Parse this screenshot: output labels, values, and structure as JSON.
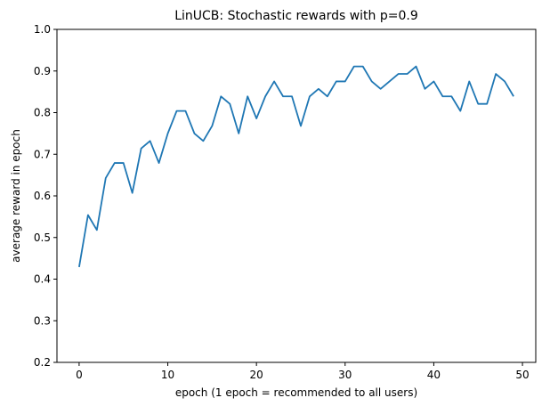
{
  "chart_data": {
    "type": "line",
    "title": "LinUCB: Stochastic rewards with p=0.9",
    "xlabel": "epoch (1 epoch = recommended to all users)",
    "ylabel": "average reward in epoch",
    "xlim": [
      -2.5,
      51.5
    ],
    "ylim": [
      0.2,
      1.0
    ],
    "xticks": [
      0,
      10,
      20,
      30,
      40,
      50
    ],
    "xtick_labels": [
      "0",
      "10",
      "20",
      "30",
      "40",
      "50"
    ],
    "yticks": [
      0.2,
      0.3,
      0.4,
      0.5,
      0.6,
      0.7,
      0.8,
      0.9,
      1.0
    ],
    "ytick_labels": [
      "0.2",
      "0.3",
      "0.4",
      "0.5",
      "0.6",
      "0.7",
      "0.8",
      "0.9",
      "1.0"
    ],
    "grid": false,
    "series": [
      {
        "color": "#1f77b4",
        "x": [
          0,
          1,
          2,
          3,
          4,
          5,
          6,
          7,
          8,
          9,
          10,
          11,
          12,
          13,
          14,
          15,
          16,
          17,
          18,
          19,
          20,
          21,
          22,
          23,
          24,
          25,
          26,
          27,
          28,
          29,
          30,
          31,
          32,
          33,
          34,
          35,
          36,
          37,
          38,
          39,
          40,
          41,
          42,
          43,
          44,
          45,
          46,
          47,
          48,
          49
        ],
        "y": [
          0.429,
          0.554,
          0.518,
          0.643,
          0.679,
          0.679,
          0.607,
          0.714,
          0.732,
          0.679,
          0.75,
          0.804,
          0.804,
          0.75,
          0.732,
          0.768,
          0.839,
          0.821,
          0.75,
          0.839,
          0.786,
          0.839,
          0.875,
          0.839,
          0.839,
          0.768,
          0.839,
          0.857,
          0.839,
          0.875,
          0.875,
          0.911,
          0.911,
          0.875,
          0.857,
          0.875,
          0.893,
          0.893,
          0.911,
          0.857,
          0.875,
          0.839,
          0.839,
          0.804,
          0.875,
          0.821,
          0.821,
          0.893,
          0.875,
          0.839
        ]
      }
    ]
  }
}
